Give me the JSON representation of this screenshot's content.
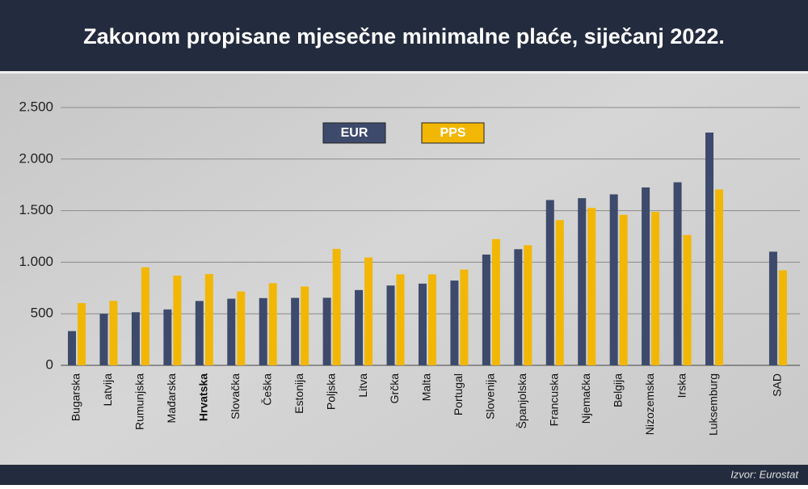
{
  "chart_data": {
    "type": "bar",
    "title": "Zakonom propisane mjesečne minimalne plaće, siječanj 2022.",
    "source": "Izvor: Eurostat",
    "categories": [
      "Bugarska",
      "Latvija",
      "Rumunjska",
      "Mađarska",
      "Hrvatska",
      "Slovačka",
      "Češka",
      "Estonija",
      "Poljska",
      "Litva",
      "Grčka",
      "Malta",
      "Portugal",
      "Slovenija",
      "Španjolska",
      "Francuska",
      "Njemačka",
      "Belgija",
      "Nizozemska",
      "Irska",
      "Luksemburg",
      null,
      "SAD"
    ],
    "highlight_category": "Hrvatska",
    "series": [
      {
        "name": "EUR",
        "color": "#3d4a6b",
        "values": [
          332,
          500,
          515,
          542,
          624,
          646,
          652,
          654,
          655,
          730,
          774,
          792,
          822,
          1074,
          1126,
          1603,
          1621,
          1658,
          1725,
          1775,
          2257,
          null,
          1102
        ]
      },
      {
        "name": "PPS",
        "color": "#f2b705",
        "values": [
          604,
          626,
          950,
          870,
          885,
          716,
          796,
          764,
          1129,
          1046,
          882,
          882,
          929,
          1224,
          1165,
          1408,
          1526,
          1459,
          1488,
          1264,
          1705,
          null,
          921
        ]
      }
    ],
    "ylim": [
      0,
      2500
    ],
    "yticks": [
      0,
      500,
      {
        "value": 1000,
        "label": "1.000"
      },
      {
        "value": 1500,
        "label": "1.500"
      },
      {
        "value": 2000,
        "label": "2.000"
      },
      {
        "value": 2500,
        "label": "2.500"
      }
    ],
    "grid": true,
    "legend": "top"
  }
}
